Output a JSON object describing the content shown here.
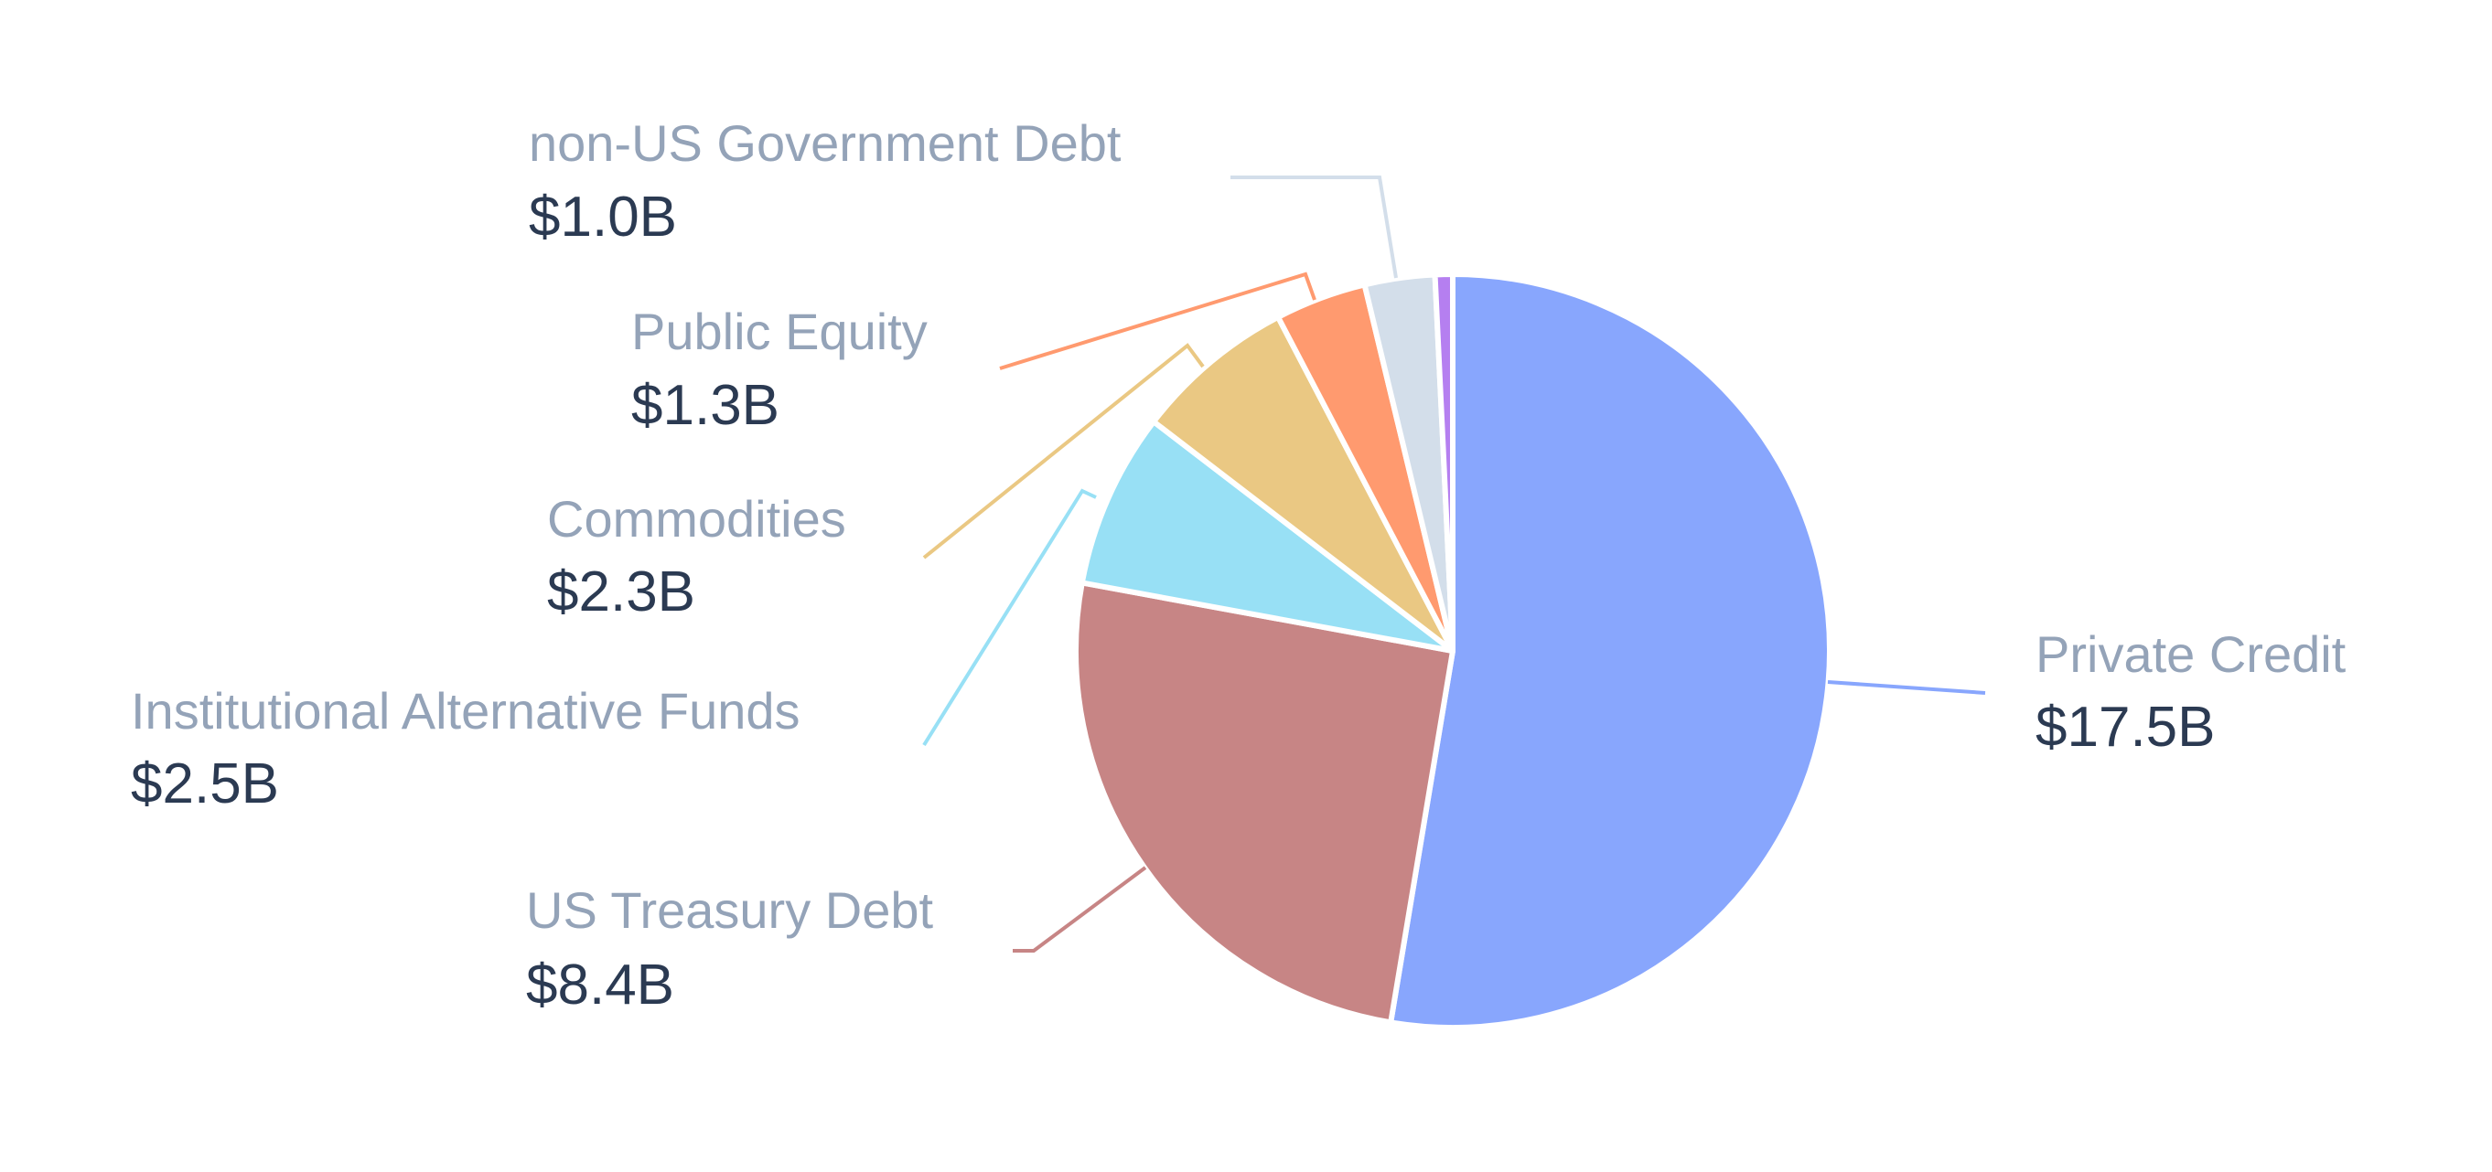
{
  "chart_data": {
    "type": "pie",
    "title": "",
    "legend": "none",
    "slices": [
      {
        "label": "Private Credit",
        "value_label": "$17.5B",
        "value": 17.5,
        "color": "#88a6fd"
      },
      {
        "label": "US Treasury Debt",
        "value_label": "$8.4B",
        "value": 8.4,
        "color": "#c78585"
      },
      {
        "label": "Institutional Alternative Funds",
        "value_label": "$2.5B",
        "value": 2.5,
        "color": "#98e0f5"
      },
      {
        "label": "Commodities",
        "value_label": "$2.3B",
        "value": 2.3,
        "color": "#eac883"
      },
      {
        "label": "Public Equity",
        "value_label": "$1.3B",
        "value": 1.3,
        "color": "#ff9a6f"
      },
      {
        "label": "non-US Government Debt",
        "value_label": "$1.0B",
        "value": 1.0,
        "color": "#d3deea"
      },
      {
        "label": "",
        "value_label": "",
        "value": 0.25,
        "color": "#b57ff0"
      }
    ]
  }
}
